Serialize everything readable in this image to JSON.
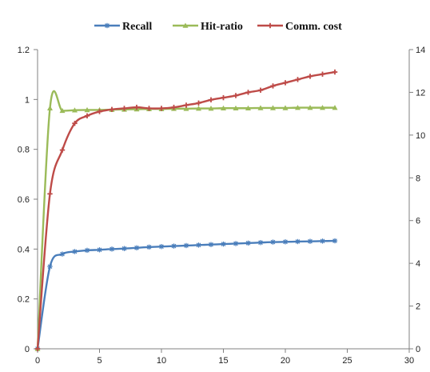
{
  "chart_data": {
    "type": "line",
    "legend_position": "top",
    "grid": false,
    "x_axis": {
      "range": [
        0,
        30
      ],
      "ticks": [
        0,
        5,
        10,
        15,
        20,
        25,
        30
      ]
    },
    "y_axis_left": {
      "range": [
        0,
        1.2
      ],
      "ticks": [
        0,
        0.2,
        0.4,
        0.6,
        0.8,
        1,
        1.2
      ]
    },
    "y_axis_right": {
      "range": [
        0,
        14
      ],
      "ticks": [
        0,
        2,
        4,
        6,
        8,
        10,
        12,
        14
      ]
    },
    "series": [
      {
        "name": "Recall",
        "axis": "left",
        "color": "#4a7ebb",
        "marker": "star",
        "points": [
          [
            0,
            0
          ],
          [
            1,
            0.33
          ],
          [
            2,
            0.38
          ],
          [
            3,
            0.39
          ],
          [
            4,
            0.395
          ],
          [
            5,
            0.397
          ],
          [
            6,
            0.4
          ],
          [
            7,
            0.402
          ],
          [
            8,
            0.405
          ],
          [
            9,
            0.408
          ],
          [
            10,
            0.41
          ],
          [
            11,
            0.412
          ],
          [
            12,
            0.414
          ],
          [
            13,
            0.416
          ],
          [
            14,
            0.418
          ],
          [
            15,
            0.42
          ],
          [
            16,
            0.422
          ],
          [
            17,
            0.424
          ],
          [
            18,
            0.426
          ],
          [
            19,
            0.428
          ],
          [
            20,
            0.429
          ],
          [
            21,
            0.43
          ],
          [
            22,
            0.431
          ],
          [
            23,
            0.432
          ],
          [
            24,
            0.433
          ]
        ]
      },
      {
        "name": "Hit-ratio",
        "axis": "left",
        "color": "#9bbb59",
        "marker": "triangle",
        "points": [
          [
            0,
            0
          ],
          [
            1,
            0.965
          ],
          [
            2,
            0.955
          ],
          [
            3,
            0.957
          ],
          [
            4,
            0.958
          ],
          [
            5,
            0.958
          ],
          [
            6,
            0.959
          ],
          [
            7,
            0.96
          ],
          [
            8,
            0.961
          ],
          [
            9,
            0.962
          ],
          [
            10,
            0.962
          ],
          [
            11,
            0.963
          ],
          [
            12,
            0.963
          ],
          [
            13,
            0.964
          ],
          [
            14,
            0.964
          ],
          [
            15,
            0.965
          ],
          [
            16,
            0.965
          ],
          [
            17,
            0.965
          ],
          [
            18,
            0.966
          ],
          [
            19,
            0.966
          ],
          [
            20,
            0.966
          ],
          [
            21,
            0.967
          ],
          [
            22,
            0.967
          ],
          [
            23,
            0.967
          ],
          [
            24,
            0.967
          ]
        ]
      },
      {
        "name": "Comm. cost",
        "axis": "right",
        "color": "#be4b48",
        "marker": "plus",
        "points": [
          [
            0,
            0
          ],
          [
            1,
            7.25
          ],
          [
            2,
            9.3
          ],
          [
            3,
            10.55
          ],
          [
            4,
            10.9
          ],
          [
            5,
            11.1
          ],
          [
            6,
            11.2
          ],
          [
            7,
            11.25
          ],
          [
            8,
            11.3
          ],
          [
            9,
            11.25
          ],
          [
            10,
            11.25
          ],
          [
            11,
            11.3
          ],
          [
            12,
            11.4
          ],
          [
            13,
            11.5
          ],
          [
            14,
            11.65
          ],
          [
            15,
            11.75
          ],
          [
            16,
            11.85
          ],
          [
            17,
            12.0
          ],
          [
            18,
            12.1
          ],
          [
            19,
            12.3
          ],
          [
            20,
            12.45
          ],
          [
            21,
            12.6
          ],
          [
            22,
            12.75
          ],
          [
            23,
            12.85
          ],
          [
            24,
            12.95
          ]
        ]
      }
    ]
  }
}
